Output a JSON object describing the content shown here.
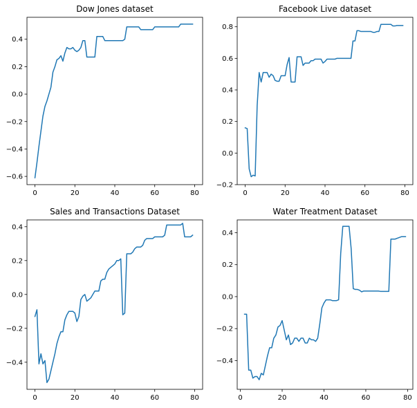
{
  "chart_data": [
    {
      "type": "line",
      "title": "Dow Jones dataset",
      "xlabel": "",
      "ylabel": "",
      "xlim": [
        -4,
        84
      ],
      "ylim": [
        -0.66,
        0.56
      ],
      "xticks": [
        0,
        20,
        40,
        60,
        80
      ],
      "yticks": [
        -0.6,
        -0.4,
        -0.2,
        0.0,
        0.2,
        0.4
      ],
      "grid": false,
      "series": [
        {
          "color": "#1f77b4",
          "x": [
            0,
            1,
            2,
            3,
            4,
            5,
            6,
            7,
            8,
            9,
            10,
            11,
            12,
            13,
            14,
            15,
            16,
            17,
            18,
            19,
            20,
            21,
            22,
            23,
            24,
            25,
            26,
            27,
            28,
            29,
            30,
            31,
            32,
            33,
            34,
            35,
            36,
            37,
            38,
            39,
            40,
            41,
            42,
            43,
            44,
            45,
            46,
            47,
            48,
            49,
            50,
            51,
            52,
            53,
            54,
            55,
            56,
            57,
            58,
            59,
            60,
            61,
            62,
            63,
            64,
            65,
            66,
            67,
            68,
            69,
            70,
            71,
            72,
            73,
            74,
            75,
            76,
            77,
            78,
            79
          ],
          "y": [
            -0.61,
            -0.5,
            -0.38,
            -0.27,
            -0.16,
            -0.09,
            -0.05,
            0.0,
            0.05,
            0.16,
            0.2,
            0.25,
            0.26,
            0.28,
            0.24,
            0.3,
            0.34,
            0.33,
            0.33,
            0.34,
            0.32,
            0.31,
            0.32,
            0.34,
            0.39,
            0.39,
            0.27,
            0.27,
            0.27,
            0.27,
            0.27,
            0.42,
            0.42,
            0.42,
            0.42,
            0.39,
            0.39,
            0.39,
            0.39,
            0.39,
            0.39,
            0.39,
            0.39,
            0.39,
            0.39,
            0.4,
            0.49,
            0.49,
            0.49,
            0.49,
            0.49,
            0.49,
            0.49,
            0.47,
            0.47,
            0.47,
            0.47,
            0.47,
            0.47,
            0.47,
            0.49,
            0.49,
            0.49,
            0.49,
            0.49,
            0.49,
            0.49,
            0.49,
            0.49,
            0.49,
            0.49,
            0.49,
            0.49,
            0.51,
            0.51,
            0.51,
            0.51,
            0.51,
            0.51,
            0.51
          ]
        }
      ]
    },
    {
      "type": "line",
      "title": "Facebook Live dataset",
      "xlabel": "",
      "ylabel": "",
      "xlim": [
        -4,
        84
      ],
      "ylim": [
        -0.2,
        0.86
      ],
      "xticks": [
        0,
        20,
        40,
        60,
        80
      ],
      "yticks": [
        -0.2,
        0.0,
        0.2,
        0.4,
        0.6,
        0.8
      ],
      "grid": false,
      "series": [
        {
          "color": "#1f77b4",
          "x": [
            0,
            1,
            2,
            3,
            4,
            5,
            6,
            7,
            8,
            9,
            10,
            11,
            12,
            13,
            14,
            15,
            16,
            17,
            18,
            19,
            20,
            21,
            22,
            23,
            24,
            25,
            26,
            27,
            28,
            29,
            30,
            31,
            32,
            33,
            34,
            35,
            36,
            37,
            38,
            39,
            40,
            41,
            42,
            43,
            44,
            45,
            46,
            47,
            48,
            49,
            50,
            51,
            52,
            53,
            54,
            55,
            56,
            57,
            58,
            59,
            60,
            61,
            62,
            63,
            64,
            65,
            66,
            67,
            68,
            69,
            70,
            71,
            72,
            73,
            74,
            75,
            76,
            77,
            78,
            79
          ],
          "y": [
            0.16,
            0.155,
            -0.1,
            -0.15,
            -0.14,
            -0.145,
            0.3,
            0.51,
            0.45,
            0.51,
            0.51,
            0.51,
            0.48,
            0.5,
            0.49,
            0.46,
            0.455,
            0.455,
            0.49,
            0.49,
            0.49,
            0.56,
            0.605,
            0.45,
            0.45,
            0.45,
            0.61,
            0.61,
            0.61,
            0.555,
            0.57,
            0.57,
            0.57,
            0.585,
            0.585,
            0.595,
            0.595,
            0.595,
            0.595,
            0.57,
            0.58,
            0.595,
            0.595,
            0.595,
            0.595,
            0.595,
            0.6,
            0.6,
            0.6,
            0.6,
            0.6,
            0.6,
            0.6,
            0.6,
            0.71,
            0.71,
            0.775,
            0.775,
            0.77,
            0.77,
            0.77,
            0.77,
            0.77,
            0.77,
            0.765,
            0.765,
            0.77,
            0.77,
            0.815,
            0.815,
            0.815,
            0.815,
            0.815,
            0.815,
            0.805,
            0.805,
            0.808,
            0.808,
            0.808,
            0.808
          ]
        }
      ]
    },
    {
      "type": "line",
      "title": "Sales and Transactions Dataset",
      "xlabel": "",
      "ylabel": "",
      "xlim": [
        -4,
        84
      ],
      "ylim": [
        -0.56,
        0.44
      ],
      "xticks": [
        0,
        20,
        40,
        60,
        80
      ],
      "yticks": [
        -0.4,
        -0.2,
        0.0,
        0.2,
        0.4
      ],
      "grid": false,
      "series": [
        {
          "color": "#1f77b4",
          "x": [
            0,
            1,
            2,
            3,
            4,
            5,
            6,
            7,
            8,
            9,
            10,
            11,
            12,
            13,
            14,
            15,
            16,
            17,
            18,
            19,
            20,
            21,
            22,
            23,
            24,
            25,
            26,
            27,
            28,
            29,
            30,
            31,
            32,
            33,
            34,
            35,
            36,
            37,
            38,
            39,
            40,
            41,
            42,
            43,
            44,
            45,
            46,
            47,
            48,
            49,
            50,
            51,
            52,
            53,
            54,
            55,
            56,
            57,
            58,
            59,
            60,
            61,
            62,
            63,
            64,
            65,
            66,
            67,
            68,
            69,
            70,
            71,
            72,
            73,
            74,
            75,
            76,
            77,
            78,
            79
          ],
          "y": [
            -0.13,
            -0.09,
            -0.41,
            -0.35,
            -0.41,
            -0.39,
            -0.52,
            -0.5,
            -0.45,
            -0.4,
            -0.35,
            -0.29,
            -0.25,
            -0.22,
            -0.22,
            -0.15,
            -0.12,
            -0.1,
            -0.1,
            -0.1,
            -0.11,
            -0.16,
            -0.13,
            -0.03,
            -0.01,
            0.0,
            -0.04,
            -0.03,
            -0.02,
            0.0,
            0.02,
            0.02,
            0.02,
            0.08,
            0.09,
            0.09,
            0.13,
            0.15,
            0.16,
            0.17,
            0.18,
            0.2,
            0.2,
            0.21,
            -0.12,
            -0.11,
            0.24,
            0.24,
            0.24,
            0.25,
            0.27,
            0.28,
            0.28,
            0.28,
            0.29,
            0.32,
            0.33,
            0.33,
            0.33,
            0.33,
            0.34,
            0.34,
            0.34,
            0.34,
            0.34,
            0.35,
            0.41,
            0.41,
            0.41,
            0.41,
            0.41,
            0.41,
            0.41,
            0.41,
            0.42,
            0.34,
            0.34,
            0.34,
            0.34,
            0.35
          ]
        }
      ]
    },
    {
      "type": "line",
      "title": "Water Treatment Dataset",
      "xlabel": "",
      "ylabel": "",
      "xlim": [
        -1.5,
        82.5
      ],
      "ylim": [
        -0.58,
        0.48
      ],
      "xticks": [
        0,
        20,
        40,
        60,
        80
      ],
      "yticks": [
        -0.4,
        -0.2,
        0.0,
        0.2,
        0.4
      ],
      "grid": false,
      "series": [
        {
          "color": "#1f77b4",
          "x": [
            2,
            3,
            4,
            5,
            6,
            7,
            8,
            9,
            10,
            11,
            12,
            13,
            14,
            15,
            16,
            17,
            18,
            19,
            20,
            21,
            22,
            23,
            24,
            25,
            26,
            27,
            28,
            29,
            30,
            31,
            32,
            33,
            34,
            35,
            36,
            37,
            38,
            39,
            40,
            41,
            42,
            43,
            44,
            45,
            46,
            47,
            48,
            49,
            50,
            51,
            52,
            53,
            54,
            55,
            56,
            57,
            58,
            59,
            60,
            61,
            62,
            63,
            64,
            65,
            66,
            67,
            68,
            69,
            70,
            71,
            72,
            73,
            74,
            75,
            76,
            77,
            78,
            79
          ],
          "y": [
            -0.11,
            -0.11,
            -0.46,
            -0.46,
            -0.51,
            -0.5,
            -0.5,
            -0.52,
            -0.48,
            -0.49,
            -0.43,
            -0.37,
            -0.32,
            -0.32,
            -0.26,
            -0.24,
            -0.19,
            -0.18,
            -0.15,
            -0.21,
            -0.27,
            -0.24,
            -0.3,
            -0.29,
            -0.26,
            -0.26,
            -0.28,
            -0.26,
            -0.26,
            -0.29,
            -0.29,
            -0.26,
            -0.27,
            -0.27,
            -0.28,
            -0.26,
            -0.17,
            -0.07,
            -0.04,
            -0.02,
            -0.02,
            -0.02,
            -0.025,
            -0.025,
            -0.025,
            -0.02,
            0.27,
            0.44,
            0.44,
            0.44,
            0.44,
            0.3,
            0.05,
            0.045,
            0.045,
            0.04,
            0.03,
            0.035,
            0.035,
            0.035,
            0.035,
            0.035,
            0.035,
            0.035,
            0.035,
            0.033,
            0.033,
            0.033,
            0.033,
            0.033,
            0.36,
            0.36,
            0.36,
            0.365,
            0.37,
            0.375,
            0.375,
            0.375
          ]
        }
      ]
    }
  ]
}
